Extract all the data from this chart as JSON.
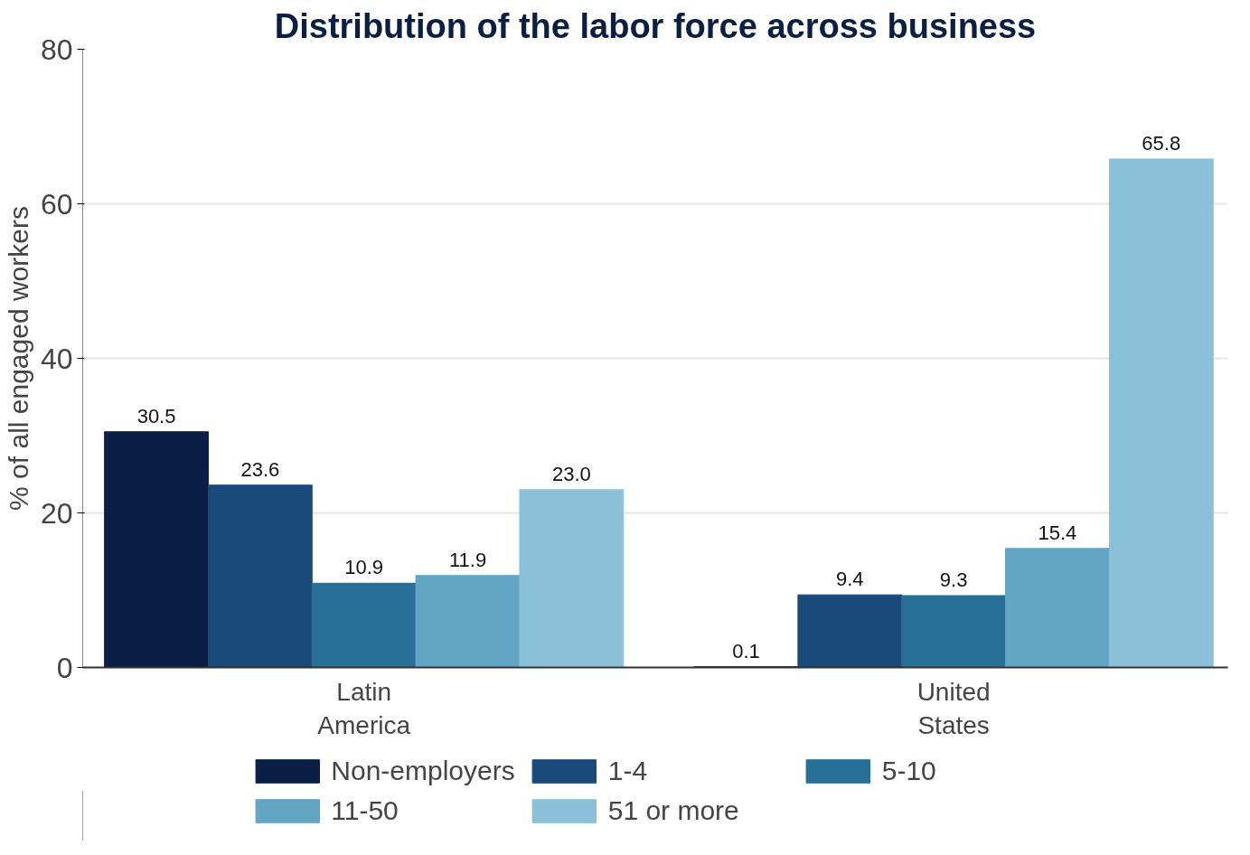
{
  "chart_data": {
    "type": "bar",
    "title": "Distribution of the labor force across business",
    "ylabel": "% of all engaged workers",
    "categories": [
      "Latin America",
      "United States"
    ],
    "series": [
      {
        "name": "Non-employers",
        "color": "#0b1f45",
        "values": [
          30.5,
          0.1
        ],
        "value_labels": [
          "30.5",
          "0.1"
        ]
      },
      {
        "name": "1-4",
        "color": "#1a4a7a",
        "values": [
          23.6,
          9.4
        ],
        "value_labels": [
          "23.6",
          "9.4"
        ]
      },
      {
        "name": "5-10",
        "color": "#276f96",
        "values": [
          10.9,
          9.3
        ],
        "value_labels": [
          "10.9",
          "9.3"
        ]
      },
      {
        "name": "11-50",
        "color": "#62a5c4",
        "values": [
          11.9,
          15.4
        ],
        "value_labels": [
          "11.9",
          "15.4"
        ]
      },
      {
        "name": "51 or more",
        "color": "#8bc1d8",
        "values": [
          23.0,
          65.8
        ],
        "value_labels": [
          "23.0",
          "65.8"
        ]
      }
    ],
    "ylim": [
      0,
      80
    ],
    "yticks": [
      0,
      20,
      40,
      60,
      80
    ],
    "grid": "y",
    "legend": "bottom"
  }
}
